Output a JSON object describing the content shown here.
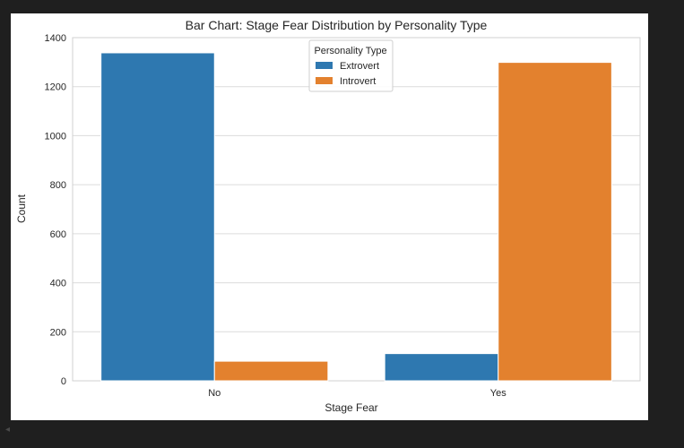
{
  "chart_data": {
    "type": "bar",
    "title": "Bar Chart: Stage Fear Distribution by Personality Type",
    "xlabel": "Stage Fear",
    "ylabel": "Count",
    "categories": [
      "No",
      "Yes"
    ],
    "series": [
      {
        "name": "Extrovert",
        "color": "#2e78b0",
        "values": [
          1338,
          111
        ]
      },
      {
        "name": "Introvert",
        "color": "#e3812e",
        "values": [
          80,
          1299
        ]
      }
    ],
    "ylim": [
      0,
      1400
    ],
    "yticks": [
      0,
      200,
      400,
      600,
      800,
      1000,
      1200,
      1400
    ],
    "grid": true,
    "legend": {
      "title": "Personality Type",
      "placement": "top-center"
    }
  },
  "ui": {
    "background": "#1f1f1f",
    "scroll_hint_icon": "caret-left-icon",
    "scroll_hint_glyph": "◂"
  }
}
